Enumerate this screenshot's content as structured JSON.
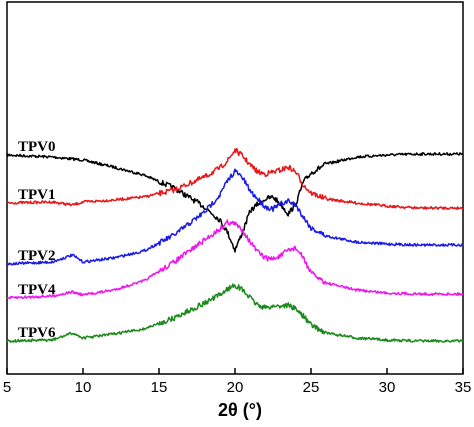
{
  "chart_data": {
    "type": "line",
    "title": "",
    "xlabel": "2θ (°)",
    "ylabel": "",
    "xlim": [
      5,
      35
    ],
    "xticks": [
      "5",
      "10",
      "15",
      "20",
      "25",
      "30",
      "35"
    ],
    "y_ticks_shown": false,
    "legend": "inline labels at left of each curve",
    "series": [
      {
        "name": "TPV0",
        "color": "#000000",
        "x": [
          5,
          8,
          10,
          12,
          14,
          16,
          18,
          19,
          19.5,
          20,
          20.5,
          21,
          21.5,
          22,
          22.5,
          23,
          23.5,
          24,
          24.5,
          25,
          26,
          28,
          30,
          32,
          35
        ],
        "values": [
          155,
          157,
          160,
          167,
          175,
          188,
          207,
          220,
          232,
          250,
          232,
          211,
          204,
          199,
          197,
          204,
          214,
          204,
          182,
          173,
          164,
          157,
          155,
          154,
          154
        ]
      },
      {
        "name": "TPV1",
        "color": "#e8171a",
        "x": [
          5,
          8,
          9.3,
          10,
          12,
          14,
          16,
          18,
          19,
          19.5,
          20,
          20.5,
          21,
          21.5,
          22,
          22.5,
          23,
          23.5,
          24,
          24.5,
          25,
          26,
          28,
          30,
          32,
          35
        ],
        "values": [
          203,
          202,
          205,
          202,
          200,
          197,
          190,
          177,
          168,
          161,
          150,
          156,
          165,
          172,
          174,
          172,
          170,
          167,
          172,
          185,
          193,
          199,
          203,
          206,
          208,
          208
        ]
      },
      {
        "name": "TPV2",
        "color": "#1a1ae6",
        "x": [
          5,
          8,
          9.3,
          10,
          12,
          14,
          16,
          18,
          19,
          19.5,
          20,
          20.5,
          21,
          21.5,
          22,
          22.5,
          23,
          23.5,
          24,
          24.5,
          25,
          26,
          28,
          30,
          32,
          35
        ],
        "values": [
          264,
          262,
          255,
          262,
          258,
          251,
          235,
          212,
          195,
          181,
          171,
          178,
          191,
          199,
          207,
          209,
          204,
          201,
          205,
          217,
          228,
          236,
          242,
          244,
          245,
          245
        ]
      },
      {
        "name": "TPV4",
        "color": "#ee18ee",
        "x": [
          5,
          8,
          9.3,
          10,
          12,
          14,
          16,
          18,
          19,
          19.5,
          20,
          20.5,
          21,
          21.5,
          22,
          22.5,
          23,
          23.5,
          24,
          24.5,
          25,
          26,
          28,
          30,
          32,
          35
        ],
        "values": [
          298,
          296,
          292,
          295,
          290,
          281,
          262,
          240,
          229,
          222,
          224,
          230,
          242,
          252,
          258,
          259,
          256,
          250,
          248,
          258,
          273,
          283,
          290,
          293,
          294,
          294
        ]
      },
      {
        "name": "TPV6",
        "color": "#1a8a1a",
        "x": [
          5,
          8,
          9.3,
          10,
          12,
          14,
          16,
          18,
          19,
          19.5,
          20,
          20.5,
          21,
          21.5,
          22,
          22.5,
          23,
          23.5,
          24,
          24.5,
          25,
          26,
          28,
          30,
          32,
          35
        ],
        "values": [
          341,
          340,
          333,
          338,
          334,
          329,
          318,
          303,
          295,
          289,
          285,
          290,
          298,
          305,
          308,
          306,
          306,
          305,
          309,
          316,
          325,
          333,
          338,
          340,
          341,
          341
        ]
      }
    ]
  }
}
